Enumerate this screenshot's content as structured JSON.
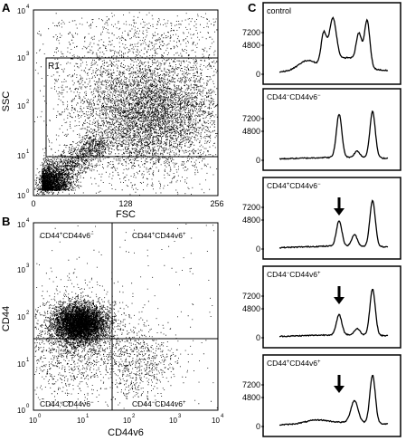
{
  "panels": {
    "a": {
      "letter": "A",
      "x_title": "FSC",
      "y_title": "SSC",
      "x_ticks": [
        "0",
        "128",
        "256"
      ],
      "gate_label": "R1"
    },
    "b": {
      "letter": "B",
      "x_title": "CD44v6",
      "y_title": "CD44",
      "x_ticks": [
        "10",
        "10",
        "10",
        "10",
        "10"
      ],
      "x_tick_exps": [
        "0",
        "1",
        "2",
        "3",
        "4"
      ],
      "quadrants": {
        "ul": {
          "p1": "CD44",
          "s1": "+",
          "p2": "CD44v6",
          "s2": "−"
        },
        "ur": {
          "p1": "CD44",
          "s1": "+",
          "p2": "CD44v6",
          "s2": "+"
        },
        "ll": {
          "p1": "CD44",
          "s1": "−",
          "p2": "CD44v6",
          "s2": "−"
        },
        "lr": {
          "p1": "CD44",
          "s1": "−",
          "p2": "CD44v6",
          "s2": "+"
        }
      }
    },
    "c": {
      "letter": "C"
    }
  },
  "log_axis": {
    "base": "10",
    "exps": [
      "0",
      "1",
      "2",
      "3",
      "4"
    ]
  },
  "histograms": [
    {
      "label": {
        "p1": "control",
        "s1": "",
        "p2": "",
        "s2": ""
      },
      "arrow": false,
      "y_ticks": [
        "7200",
        "4800",
        "0"
      ]
    },
    {
      "label": {
        "p1": "CD44",
        "s1": "−",
        "p2": "CD44v6",
        "s2": "−"
      },
      "arrow": false,
      "y_ticks": [
        "7200",
        "4800",
        "0"
      ]
    },
    {
      "label": {
        "p1": "CD44",
        "s1": "+",
        "p2": "CD44v6",
        "s2": "−"
      },
      "arrow": true,
      "y_ticks": [
        "7200",
        "4800",
        "0"
      ]
    },
    {
      "label": {
        "p1": "CD44",
        "s1": "−",
        "p2": "CD44v6",
        "s2": "+"
      },
      "arrow": true,
      "y_ticks": [
        "7200",
        "4800",
        "0"
      ]
    },
    {
      "label": {
        "p1": "CD44",
        "s1": "+",
        "p2": "CD44v6",
        "s2": "+"
      },
      "arrow": true,
      "y_ticks": [
        "7200",
        "4800",
        "0"
      ]
    }
  ]
}
